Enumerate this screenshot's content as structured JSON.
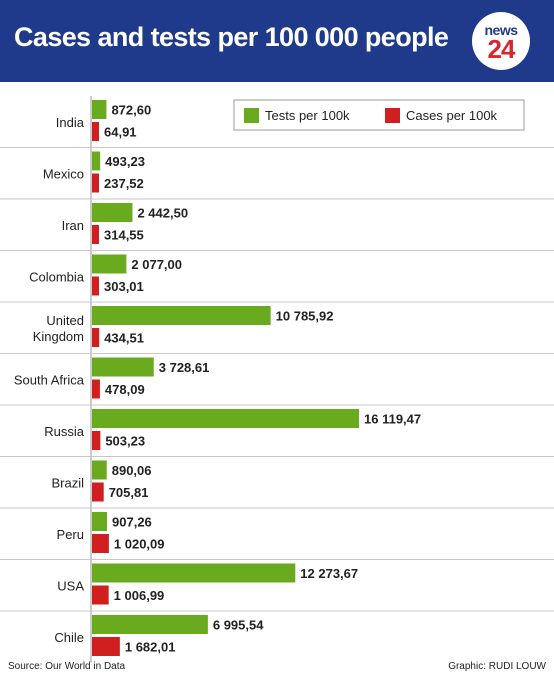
{
  "header": {
    "title": "Cases and tests per 100 000 people",
    "logo_top": "news",
    "logo_bottom": "24"
  },
  "footer": {
    "source": "Source: Our World in Data",
    "credit": "Graphic: RUDI LOUW"
  },
  "colors": {
    "header_bg": "#1f3a8a",
    "tests": "#6aaa1f",
    "cases": "#d11f1f"
  },
  "chart_data": {
    "type": "bar",
    "orientation": "horizontal",
    "title": "Cases and tests per 100 000 people",
    "categories": [
      "India",
      "Mexico",
      "Iran",
      "Colombia",
      "United Kingdom",
      "South Africa",
      "Russia",
      "Brazil",
      "Peru",
      "USA",
      "Chile"
    ],
    "category_lines": [
      [
        "India"
      ],
      [
        "Mexico"
      ],
      [
        "Iran"
      ],
      [
        "Colombia"
      ],
      [
        "United",
        "Kingdom"
      ],
      [
        "South Africa"
      ],
      [
        "Russia"
      ],
      [
        "Brazil"
      ],
      [
        "Peru"
      ],
      [
        "USA"
      ],
      [
        "Chile"
      ]
    ],
    "series": [
      {
        "name": "Tests per 100k",
        "color": "#6aaa1f",
        "values": [
          872.6,
          493.23,
          2442.5,
          2077.0,
          10785.92,
          3728.61,
          16119.47,
          890.06,
          907.26,
          12273.67,
          6995.54
        ],
        "labels": [
          "872,60",
          "493,23",
          "2 442,50",
          "2 077,00",
          "10 785,92",
          "3 728,61",
          "16 119,47",
          "890,06",
          "907,26",
          "12 273,67",
          "6 995,54"
        ]
      },
      {
        "name": "Cases per 100k",
        "color": "#d11f1f",
        "values": [
          64.91,
          237.52,
          314.55,
          303.01,
          434.51,
          478.09,
          503.23,
          705.81,
          1020.09,
          1006.99,
          1682.01
        ],
        "labels": [
          "64,91",
          "237,52",
          "314,55",
          "303,01",
          "434,51",
          "478,09",
          "503,23",
          "705,81",
          "1 020,09",
          "1 006,99",
          "1 682,01"
        ]
      }
    ],
    "legend_position": "top-right",
    "grid": false
  }
}
